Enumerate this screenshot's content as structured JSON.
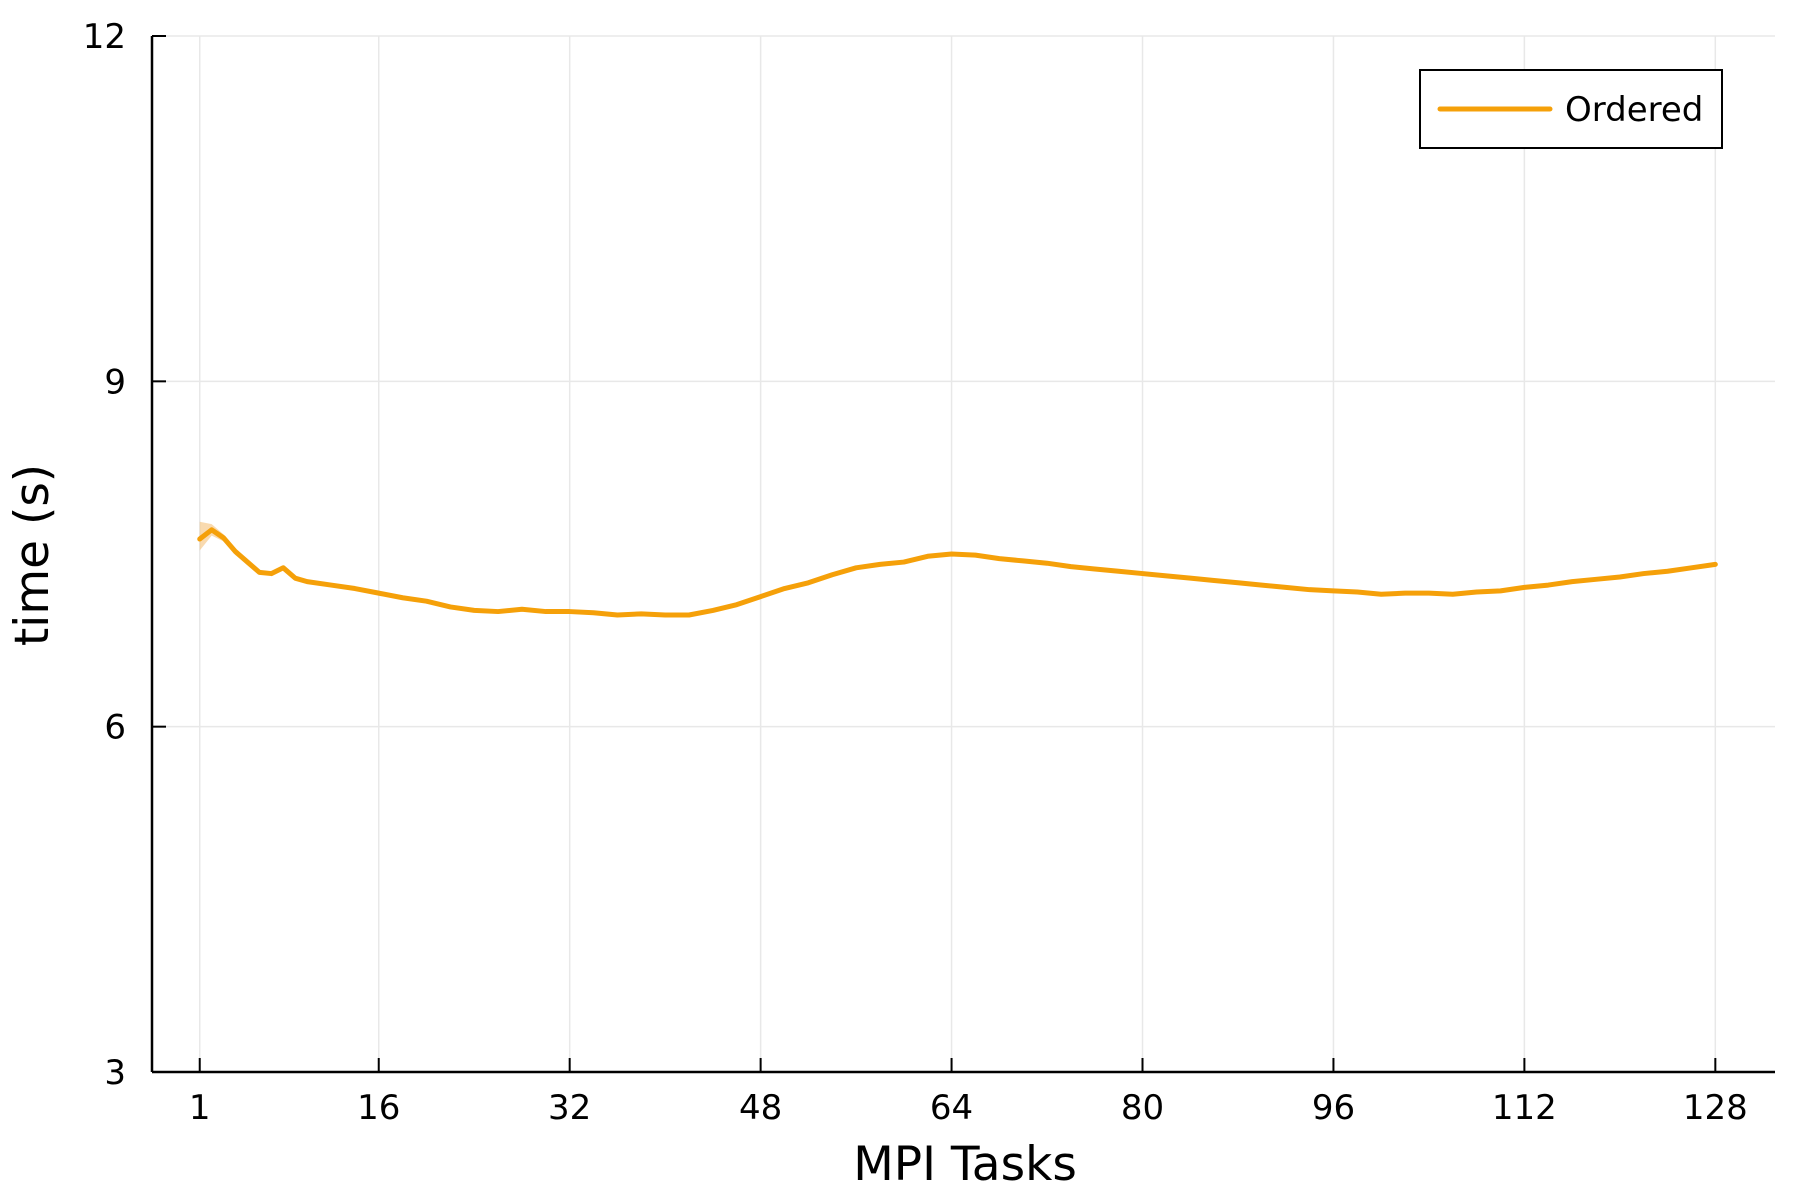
{
  "chart_data": {
    "type": "line",
    "title": "",
    "xlabel": "MPI Tasks",
    "ylabel": "time (s)",
    "xlim": [
      -3,
      133
    ],
    "ylim": [
      3,
      12
    ],
    "xticks": [
      1,
      16,
      32,
      48,
      64,
      80,
      96,
      112,
      128
    ],
    "yticks": [
      3,
      6,
      9,
      12
    ],
    "grid": true,
    "legend": {
      "position": "top-right",
      "entries": [
        "Ordered"
      ]
    },
    "colors": {
      "series": "#f5a009",
      "band": "#f5c27a",
      "grid": "#e8e8e8",
      "axis": "#000000"
    },
    "series": [
      {
        "name": "Ordered",
        "x": [
          1,
          2,
          3,
          4,
          5,
          6,
          7,
          8,
          9,
          10,
          12,
          14,
          16,
          18,
          20,
          22,
          24,
          26,
          28,
          30,
          32,
          34,
          36,
          38,
          40,
          42,
          44,
          46,
          48,
          50,
          52,
          54,
          56,
          58,
          60,
          62,
          64,
          66,
          68,
          70,
          72,
          74,
          76,
          78,
          80,
          82,
          84,
          86,
          88,
          90,
          92,
          94,
          96,
          98,
          100,
          102,
          104,
          106,
          108,
          110,
          112,
          114,
          116,
          118,
          120,
          122,
          124,
          126,
          128
        ],
        "y": [
          7.63,
          7.71,
          7.64,
          7.52,
          7.43,
          7.34,
          7.33,
          7.38,
          7.29,
          7.26,
          7.23,
          7.2,
          7.16,
          7.12,
          7.09,
          7.04,
          7.01,
          7.0,
          7.02,
          7.0,
          7.0,
          6.99,
          6.97,
          6.98,
          6.97,
          6.97,
          7.01,
          7.06,
          7.13,
          7.2,
          7.25,
          7.32,
          7.38,
          7.41,
          7.43,
          7.48,
          7.5,
          7.49,
          7.46,
          7.44,
          7.42,
          7.39,
          7.37,
          7.35,
          7.33,
          7.31,
          7.29,
          7.27,
          7.25,
          7.23,
          7.21,
          7.19,
          7.18,
          7.17,
          7.15,
          7.16,
          7.16,
          7.15,
          7.17,
          7.18,
          7.21,
          7.23,
          7.26,
          7.28,
          7.3,
          7.33,
          7.35,
          7.38,
          7.41
        ],
        "band_upper": [
          7.78,
          7.76,
          7.67,
          7.55,
          7.45,
          7.35,
          7.34,
          7.39,
          7.3,
          7.27,
          7.24,
          7.21,
          7.17,
          7.13,
          7.1,
          7.05,
          7.02,
          7.01,
          7.03,
          7.01,
          7.01,
          7.0,
          6.98,
          6.99,
          6.98,
          6.98,
          7.02,
          7.07,
          7.14,
          7.21,
          7.26,
          7.33,
          7.39,
          7.42,
          7.44,
          7.49,
          7.51,
          7.5,
          7.47,
          7.45,
          7.43,
          7.4,
          7.38,
          7.36,
          7.34,
          7.32,
          7.3,
          7.28,
          7.26,
          7.24,
          7.22,
          7.2,
          7.19,
          7.18,
          7.16,
          7.17,
          7.17,
          7.16,
          7.18,
          7.19,
          7.22,
          7.24,
          7.27,
          7.29,
          7.31,
          7.34,
          7.36,
          7.39,
          7.42
        ],
        "band_lower": [
          7.53,
          7.66,
          7.61,
          7.49,
          7.41,
          7.33,
          7.32,
          7.37,
          7.28,
          7.25,
          7.22,
          7.19,
          7.15,
          7.11,
          7.08,
          7.03,
          7.0,
          6.99,
          7.01,
          6.99,
          6.99,
          6.98,
          6.96,
          6.97,
          6.96,
          6.96,
          7.0,
          7.05,
          7.12,
          7.19,
          7.24,
          7.31,
          7.37,
          7.4,
          7.42,
          7.47,
          7.49,
          7.48,
          7.45,
          7.43,
          7.41,
          7.38,
          7.36,
          7.34,
          7.32,
          7.3,
          7.28,
          7.26,
          7.24,
          7.22,
          7.2,
          7.18,
          7.17,
          7.16,
          7.14,
          7.15,
          7.15,
          7.14,
          7.16,
          7.17,
          7.2,
          7.22,
          7.25,
          7.27,
          7.29,
          7.32,
          7.34,
          7.37,
          7.4
        ]
      }
    ]
  }
}
